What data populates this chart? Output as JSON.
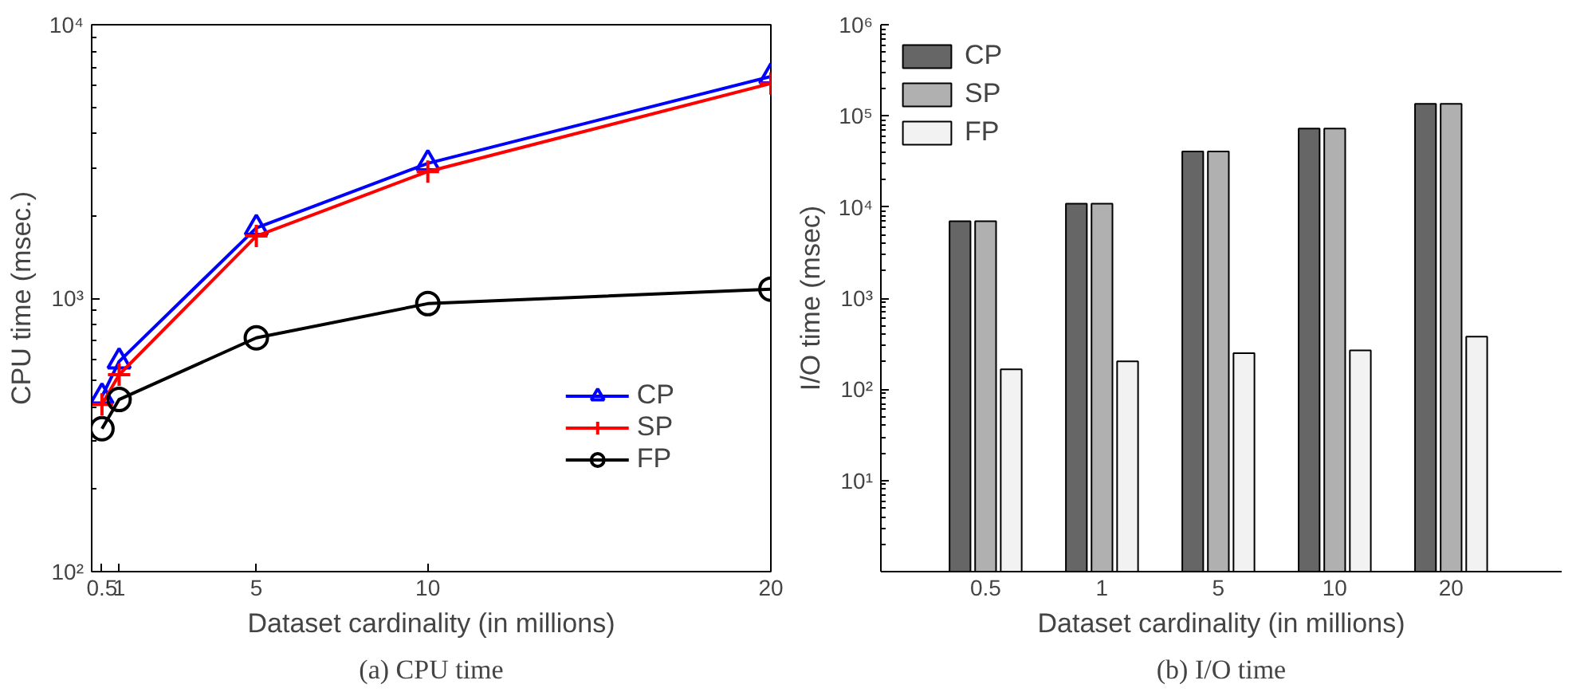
{
  "chart_data": [
    {
      "type": "line",
      "xlabel": "Dataset cardinality (in millions)",
      "ylabel": "CPU time (msec.)",
      "log": "y",
      "grid": false,
      "legend": "bottom right",
      "line_style": "solid",
      "x": [
        0.5,
        1,
        5,
        10,
        20
      ],
      "xlim": [
        0.2,
        20
      ],
      "xticks": [
        0.5,
        1,
        5,
        10,
        20
      ],
      "ylim": [
        100,
        10000
      ],
      "yticks": [
        {
          "value": 100,
          "label": "10²"
        },
        {
          "value": 1000,
          "label": "10³"
        },
        {
          "value": 10000,
          "label": "10⁴"
        }
      ],
      "series": [
        {
          "name": "CP",
          "color": "#0000ff",
          "marker": "triangle",
          "values": [
            437,
            587,
            1807,
            3112,
            6470
          ]
        },
        {
          "name": "SP",
          "color": "#ff0000",
          "marker": "cross",
          "values": [
            409,
            525,
            1687,
            2904,
            6095
          ]
        },
        {
          "name": "FP",
          "color": "#000000",
          "marker": "circle",
          "values": [
            333,
            426,
            716,
            955,
            1079
          ]
        }
      ],
      "annotations": [
        "(a) CPU time"
      ]
    },
    {
      "type": "bar",
      "xlabel": "Dataset cardinality (in millions)",
      "ylabel": "I/O time (msec)",
      "log": "y",
      "grid": false,
      "legend": "top left",
      "categories": [
        "0.5",
        "1",
        "5",
        "10",
        "20"
      ],
      "ylim": [
        1,
        1000000
      ],
      "yticks": [
        {
          "value": 10,
          "label": "10¹"
        },
        {
          "value": 100,
          "label": "10²"
        },
        {
          "value": 1000,
          "label": "10³"
        },
        {
          "value": 10000,
          "label": "10⁴"
        },
        {
          "value": 100000,
          "label": "10⁵"
        },
        {
          "value": 1000000,
          "label": "10⁶"
        }
      ],
      "series": [
        {
          "name": "CP",
          "color": "#666666",
          "values": [
            6970,
            10900,
            40600,
            72600,
            135800
          ]
        },
        {
          "name": "SP",
          "color": "#b0b0b0",
          "values": [
            6970,
            10900,
            40600,
            72600,
            135800
          ]
        },
        {
          "name": "FP",
          "color": "#f2f2f2",
          "values": [
            166,
            203,
            249,
            267,
            379
          ]
        }
      ],
      "annotations": [
        "(b) I/O time"
      ]
    }
  ]
}
